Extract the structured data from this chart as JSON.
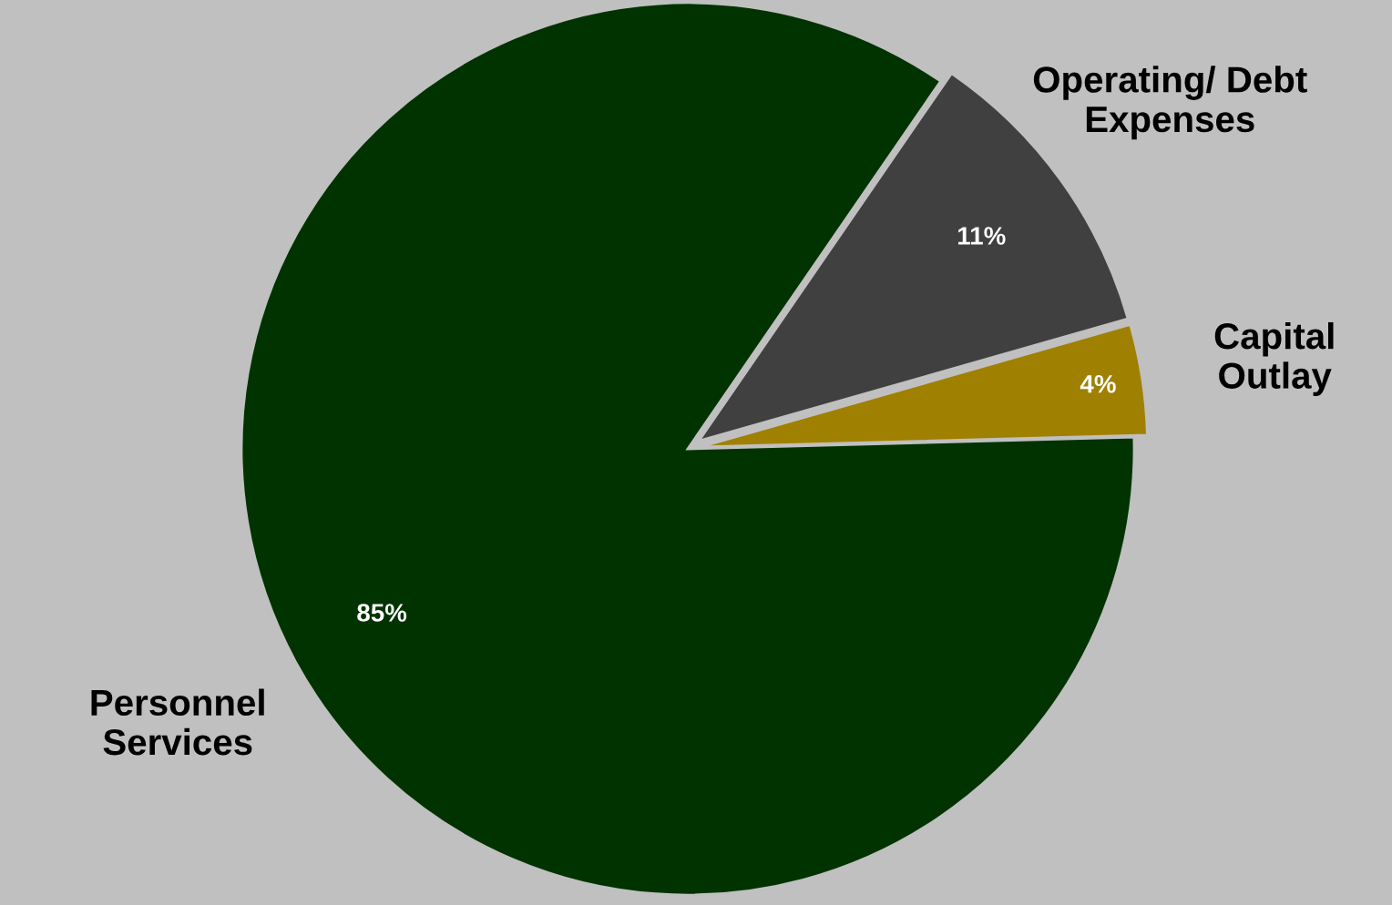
{
  "chart_data": {
    "type": "pie",
    "categories": [
      "Capital Outlay",
      "Operating/ Debt Expenses",
      "Personnel Services"
    ],
    "values": [
      4,
      11,
      85
    ],
    "colors": [
      "#a08000",
      "#404040",
      "#003300"
    ],
    "value_labels": [
      "4%",
      "11%",
      "85%"
    ],
    "legend": false
  }
}
